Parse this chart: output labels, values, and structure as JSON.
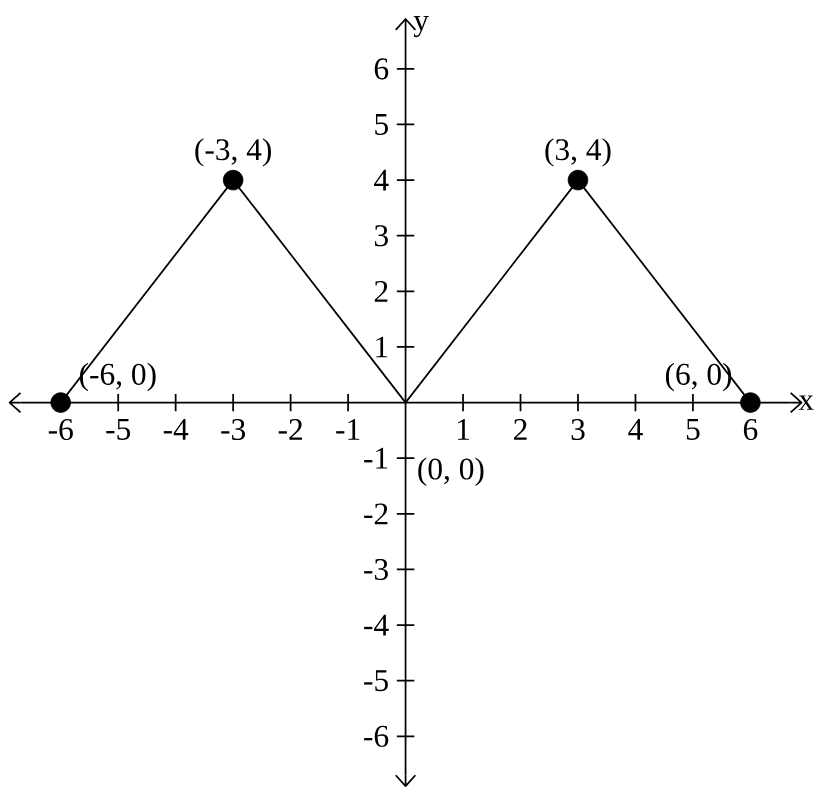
{
  "chart_data": {
    "type": "line",
    "xlabel": "x",
    "ylabel": "y",
    "xlim": [
      -6.7,
      6.7
    ],
    "ylim": [
      -6.7,
      6.7
    ],
    "xticks": [
      -6,
      -5,
      -4,
      -3,
      -2,
      -1,
      1,
      2,
      3,
      4,
      5,
      6
    ],
    "yticks": [
      -6,
      -5,
      -4,
      -3,
      -2,
      -1,
      1,
      2,
      3,
      4,
      5,
      6
    ],
    "grid": false,
    "series": [
      {
        "type": "line",
        "color": "#000000",
        "marker": "none",
        "x": [
          -6,
          -3,
          0,
          3,
          6
        ],
        "values": [
          0,
          4,
          0,
          4,
          0
        ]
      },
      {
        "type": "scatter",
        "color": "#000000",
        "marker": "circle",
        "x": [
          -6,
          -3,
          3,
          6
        ],
        "values": [
          0,
          4,
          4,
          0
        ]
      }
    ],
    "annotations": [
      {
        "text": "(-6, 0)",
        "x": -6,
        "y": 0
      },
      {
        "text": "(-3, 4)",
        "x": -3,
        "y": 4
      },
      {
        "text": "(0, 0)",
        "x": 0,
        "y": 0
      },
      {
        "text": "(3, 4)",
        "x": 3,
        "y": 4
      },
      {
        "text": "(6, 0)",
        "x": 6,
        "y": 0
      }
    ]
  }
}
